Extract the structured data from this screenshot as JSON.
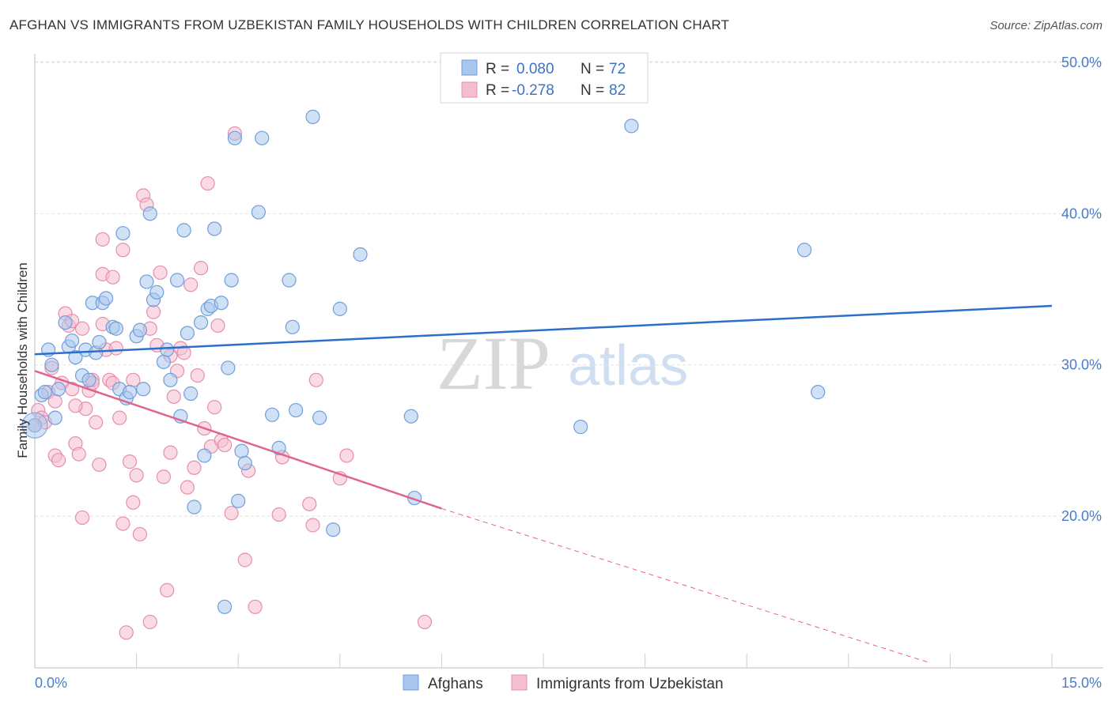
{
  "header": {
    "title": "AFGHAN VS IMMIGRANTS FROM UZBEKISTAN FAMILY HOUSEHOLDS WITH CHILDREN CORRELATION CHART",
    "source": "Source: ZipAtlas.com"
  },
  "watermark": {
    "zip": "ZIP",
    "atlas": "atlas"
  },
  "legend_top": {
    "rows": [
      {
        "r_label": "R =",
        "r_value": "0.080",
        "n_label": "N =",
        "n_value": "72"
      },
      {
        "r_label": "R =",
        "r_value": "-0.278",
        "n_label": "N =",
        "n_value": "82"
      }
    ]
  },
  "legend_bottom": {
    "items": [
      {
        "label": "Afghans"
      },
      {
        "label": "Immigrants from Uzbekistan"
      }
    ]
  },
  "colors": {
    "blue_fill": "#a9c6ec",
    "blue_stroke": "#6f9fdc",
    "blue_line": "#2b6fcb",
    "pink_fill": "#f5bdd0",
    "pink_stroke": "#e58fac",
    "pink_line": "#e0648f",
    "tick_text": "#4a7cc7",
    "grid": "#e2e2e2"
  },
  "chart_data": {
    "type": "scatter",
    "title": "AFGHAN VS IMMIGRANTS FROM UZBEKISTAN FAMILY HOUSEHOLDS WITH CHILDREN CORRELATION CHART",
    "xlabel": "",
    "ylabel": "Family Households with Children",
    "xlim": [
      0,
      15
    ],
    "ylim": [
      10,
      52
    ],
    "x_ticks": [
      0,
      1.5,
      3,
      4.5,
      6,
      7.5,
      9,
      10.5,
      12,
      13.5,
      15
    ],
    "x_tick_labels": [
      {
        "value": 0,
        "label": "0.0%"
      },
      {
        "value": 15,
        "label": "15.0%"
      }
    ],
    "y_tick_labels": [
      {
        "value": 20,
        "label": "20.0%"
      },
      {
        "value": 30,
        "label": "30.0%"
      },
      {
        "value": 40,
        "label": "40.0%"
      },
      {
        "value": 50,
        "label": "50.0%"
      }
    ],
    "grid": true,
    "legend_position": "top-center",
    "series": [
      {
        "name": "Afghans",
        "color": "#a9c6ec",
        "trend": {
          "x": [
            0,
            15
          ],
          "y": [
            30.7,
            33.9
          ],
          "r": 0.08,
          "n": 72
        },
        "points": [
          [
            0.0,
            26.0
          ],
          [
            0.1,
            28.0
          ],
          [
            0.15,
            28.2
          ],
          [
            0.25,
            30.0
          ],
          [
            0.3,
            26.5
          ],
          [
            0.2,
            31.0
          ],
          [
            0.45,
            32.8
          ],
          [
            0.5,
            31.2
          ],
          [
            0.6,
            30.5
          ],
          [
            0.55,
            31.6
          ],
          [
            0.7,
            29.3
          ],
          [
            0.75,
            31.0
          ],
          [
            0.85,
            34.1
          ],
          [
            0.9,
            30.8
          ],
          [
            0.95,
            31.5
          ],
          [
            1.0,
            34.1
          ],
          [
            1.05,
            34.4
          ],
          [
            1.15,
            32.5
          ],
          [
            1.2,
            32.4
          ],
          [
            1.25,
            28.4
          ],
          [
            1.3,
            38.7
          ],
          [
            1.35,
            27.8
          ],
          [
            1.4,
            28.2
          ],
          [
            1.5,
            31.9
          ],
          [
            1.6,
            28.4
          ],
          [
            1.65,
            35.5
          ],
          [
            1.7,
            40.0
          ],
          [
            1.75,
            34.3
          ],
          [
            1.8,
            34.8
          ],
          [
            1.9,
            30.2
          ],
          [
            1.95,
            31.0
          ],
          [
            2.0,
            29.0
          ],
          [
            2.1,
            35.6
          ],
          [
            2.15,
            26.6
          ],
          [
            2.2,
            38.9
          ],
          [
            2.25,
            32.1
          ],
          [
            2.3,
            28.1
          ],
          [
            2.35,
            20.6
          ],
          [
            2.45,
            32.8
          ],
          [
            2.5,
            24.0
          ],
          [
            2.55,
            33.7
          ],
          [
            2.6,
            33.9
          ],
          [
            2.65,
            39.0
          ],
          [
            2.75,
            34.1
          ],
          [
            2.8,
            14.0
          ],
          [
            2.85,
            29.8
          ],
          [
            2.9,
            35.6
          ],
          [
            2.95,
            45.0
          ],
          [
            3.0,
            21.0
          ],
          [
            3.05,
            24.3
          ],
          [
            3.1,
            23.5
          ],
          [
            3.3,
            40.1
          ],
          [
            3.35,
            45.0
          ],
          [
            3.5,
            26.7
          ],
          [
            3.6,
            24.5
          ],
          [
            3.75,
            35.6
          ],
          [
            3.8,
            32.5
          ],
          [
            3.85,
            27.0
          ],
          [
            4.1,
            46.4
          ],
          [
            4.2,
            26.5
          ],
          [
            4.4,
            19.1
          ],
          [
            4.5,
            33.7
          ],
          [
            4.8,
            37.3
          ],
          [
            5.55,
            26.6
          ],
          [
            5.6,
            21.2
          ],
          [
            8.05,
            25.9
          ],
          [
            8.8,
            45.8
          ],
          [
            11.35,
            37.6
          ],
          [
            11.55,
            28.2
          ],
          [
            0.35,
            28.4
          ],
          [
            0.8,
            29.0
          ],
          [
            1.55,
            32.3
          ]
        ]
      },
      {
        "name": "Immigrants from Uzbekistan",
        "color": "#f5bdd0",
        "trend": {
          "x": [
            0,
            6
          ],
          "y": [
            29.6,
            20.5
          ],
          "r": -0.278,
          "n": 82
        },
        "trend_extension": {
          "x": [
            6,
            13.2
          ],
          "y": [
            20.5,
            10.3
          ]
        },
        "points": [
          [
            0.0,
            26.0
          ],
          [
            0.05,
            27.0
          ],
          [
            0.1,
            26.5
          ],
          [
            0.15,
            26.2
          ],
          [
            0.2,
            28.2
          ],
          [
            0.25,
            29.8
          ],
          [
            0.3,
            27.6
          ],
          [
            0.3,
            24.0
          ],
          [
            0.35,
            23.7
          ],
          [
            0.4,
            28.8
          ],
          [
            0.45,
            33.4
          ],
          [
            0.5,
            32.6
          ],
          [
            0.55,
            32.9
          ],
          [
            0.55,
            28.4
          ],
          [
            0.6,
            24.8
          ],
          [
            0.65,
            24.1
          ],
          [
            0.7,
            19.9
          ],
          [
            0.7,
            32.4
          ],
          [
            0.75,
            27.1
          ],
          [
            0.8,
            28.3
          ],
          [
            0.85,
            29.0
          ],
          [
            0.9,
            26.2
          ],
          [
            0.95,
            23.4
          ],
          [
            1.0,
            38.3
          ],
          [
            1.0,
            36.0
          ],
          [
            1.05,
            31.0
          ],
          [
            1.1,
            29.0
          ],
          [
            1.15,
            35.8
          ],
          [
            1.2,
            31.1
          ],
          [
            1.25,
            26.5
          ],
          [
            1.3,
            37.6
          ],
          [
            1.3,
            19.5
          ],
          [
            1.35,
            12.3
          ],
          [
            1.4,
            23.6
          ],
          [
            1.45,
            20.9
          ],
          [
            1.5,
            22.7
          ],
          [
            1.55,
            18.8
          ],
          [
            1.6,
            41.2
          ],
          [
            1.65,
            40.6
          ],
          [
            1.7,
            32.4
          ],
          [
            1.75,
            33.5
          ],
          [
            1.8,
            31.3
          ],
          [
            1.85,
            36.1
          ],
          [
            1.9,
            22.6
          ],
          [
            1.95,
            15.1
          ],
          [
            2.0,
            24.2
          ],
          [
            2.05,
            27.9
          ],
          [
            2.1,
            29.6
          ],
          [
            2.15,
            31.1
          ],
          [
            2.2,
            30.8
          ],
          [
            2.25,
            21.9
          ],
          [
            2.3,
            35.3
          ],
          [
            2.35,
            23.2
          ],
          [
            2.4,
            29.3
          ],
          [
            2.45,
            36.4
          ],
          [
            2.5,
            25.8
          ],
          [
            2.55,
            42.0
          ],
          [
            2.6,
            24.6
          ],
          [
            2.65,
            27.2
          ],
          [
            2.7,
            32.6
          ],
          [
            2.75,
            25.0
          ],
          [
            2.8,
            24.7
          ],
          [
            2.9,
            20.2
          ],
          [
            2.95,
            45.3
          ],
          [
            3.1,
            17.1
          ],
          [
            3.15,
            23.0
          ],
          [
            3.25,
            14.0
          ],
          [
            3.6,
            20.1
          ],
          [
            3.65,
            23.9
          ],
          [
            4.05,
            20.8
          ],
          [
            4.1,
            19.4
          ],
          [
            4.15,
            29.0
          ],
          [
            4.5,
            22.5
          ],
          [
            4.6,
            24.0
          ],
          [
            5.75,
            13.0
          ],
          [
            1.7,
            13.0
          ],
          [
            0.85,
            28.8
          ],
          [
            1.15,
            28.8
          ],
          [
            1.45,
            29.0
          ],
          [
            0.6,
            27.3
          ],
          [
            1.0,
            32.7
          ],
          [
            2.0,
            30.6
          ]
        ]
      }
    ]
  }
}
